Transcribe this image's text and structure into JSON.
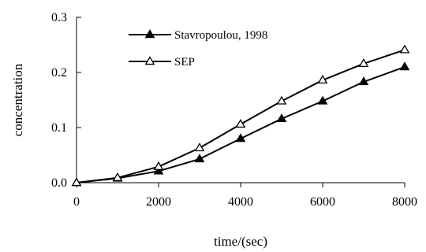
{
  "chart_data": {
    "type": "line",
    "title": "",
    "xlabel": "time/(sec)",
    "ylabel": "concentration",
    "xlim": [
      0,
      8000
    ],
    "ylim": [
      0,
      0.3
    ],
    "xticks": [
      0,
      2000,
      4000,
      6000,
      8000
    ],
    "xtick_labels": [
      "0",
      "2000",
      "4000",
      "6000",
      "8000"
    ],
    "yticks": [
      0,
      0.1,
      0.2,
      0.3
    ],
    "ytick_labels": [
      "0.0",
      "0.1",
      "0.2",
      "0.3"
    ],
    "grid": false,
    "legend_position": "top-left inside",
    "x": [
      0,
      1000,
      2000,
      3000,
      4000,
      5000,
      6000,
      7000,
      8000
    ],
    "series": [
      {
        "name": "Stavropoulou, 1998",
        "marker": "filled-triangle",
        "color": "#000000",
        "values": [
          0.0,
          0.008,
          0.021,
          0.043,
          0.08,
          0.116,
          0.148,
          0.183,
          0.21
        ]
      },
      {
        "name": "SEP",
        "marker": "open-triangle",
        "color": "#000000",
        "values": [
          0.0,
          0.009,
          0.029,
          0.063,
          0.106,
          0.148,
          0.186,
          0.216,
          0.241
        ]
      }
    ]
  }
}
